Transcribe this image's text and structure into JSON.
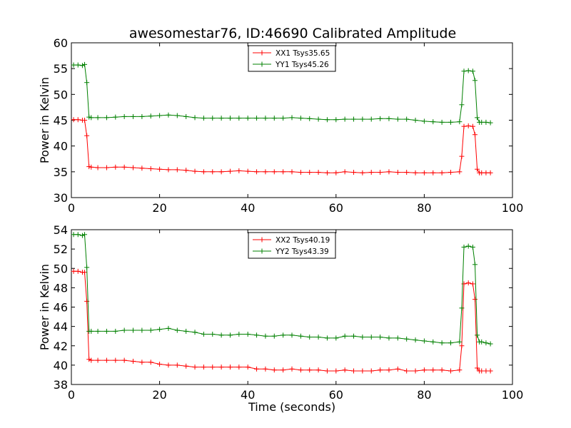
{
  "figure": {
    "title": "awesomestar76, ID:46690 Calibrated Amplitude"
  },
  "chart_data": [
    {
      "type": "line",
      "title": "awesomestar76, ID:46690 Calibrated Amplitude",
      "xlabel": "",
      "ylabel": "Power in Kelvin",
      "xlim": [
        0,
        100
      ],
      "ylim": [
        30,
        60
      ],
      "xticks": [
        "0",
        "20",
        "40",
        "60",
        "80",
        "100"
      ],
      "yticks": [
        "30",
        "35",
        "40",
        "45",
        "50",
        "55",
        "60"
      ],
      "legend_position": "top-center",
      "grid": false,
      "x": [
        0.5,
        1.5,
        2.5,
        3.0,
        3.5,
        4.0,
        4.5,
        6,
        8,
        10,
        12,
        14,
        16,
        18,
        20,
        22,
        24,
        26,
        28,
        30,
        32,
        34,
        36,
        38,
        40,
        42,
        44,
        46,
        48,
        50,
        52,
        54,
        56,
        58,
        60,
        62,
        64,
        66,
        68,
        70,
        72,
        74,
        76,
        78,
        80,
        82,
        84,
        86,
        88,
        88.5,
        89.0,
        90,
        91,
        91.5,
        92,
        92.5,
        93,
        94,
        95
      ],
      "series": [
        {
          "name": "XX1 Tsys35.65",
          "color": "#ff0000",
          "values": [
            45.1,
            45.1,
            45.0,
            45.0,
            42.0,
            36.0,
            35.9,
            35.8,
            35.8,
            35.9,
            35.9,
            35.8,
            35.7,
            35.6,
            35.5,
            35.4,
            35.4,
            35.3,
            35.1,
            35.0,
            35.0,
            35.0,
            35.1,
            35.2,
            35.1,
            35.0,
            35.0,
            35.0,
            35.0,
            35.0,
            34.9,
            34.9,
            34.9,
            34.8,
            34.8,
            35.0,
            34.9,
            34.8,
            34.9,
            34.9,
            35.0,
            34.9,
            34.9,
            34.8,
            34.8,
            34.8,
            34.8,
            34.9,
            35.0,
            38.0,
            43.8,
            43.9,
            43.8,
            42.2,
            35.5,
            34.8,
            34.8,
            34.8,
            34.8
          ]
        },
        {
          "name": "YY1 Tsys45.26",
          "color": "#008000",
          "values": [
            55.7,
            55.7,
            55.6,
            55.8,
            52.3,
            45.6,
            45.5,
            45.5,
            45.5,
            45.6,
            45.7,
            45.7,
            45.7,
            45.8,
            45.9,
            46.0,
            45.9,
            45.7,
            45.5,
            45.4,
            45.4,
            45.4,
            45.4,
            45.4,
            45.4,
            45.4,
            45.4,
            45.4,
            45.4,
            45.5,
            45.4,
            45.3,
            45.2,
            45.1,
            45.1,
            45.2,
            45.2,
            45.2,
            45.2,
            45.3,
            45.3,
            45.2,
            45.2,
            45.0,
            44.8,
            44.7,
            44.6,
            44.6,
            44.7,
            48.0,
            54.5,
            54.6,
            54.5,
            52.7,
            45.5,
            44.6,
            44.6,
            44.6,
            44.5
          ]
        }
      ]
    },
    {
      "type": "line",
      "title": "",
      "xlabel": "Time (seconds)",
      "ylabel": "Power in Kelvin",
      "xlim": [
        0,
        100
      ],
      "ylim": [
        38,
        54
      ],
      "xticks": [
        "0",
        "20",
        "40",
        "60",
        "80",
        "100"
      ],
      "yticks": [
        "38",
        "40",
        "42",
        "44",
        "46",
        "48",
        "50",
        "52",
        "54"
      ],
      "legend_position": "top-center",
      "grid": false,
      "x": [
        0.5,
        1.5,
        2.5,
        3.0,
        3.5,
        4.0,
        4.5,
        6,
        8,
        10,
        12,
        14,
        16,
        18,
        20,
        22,
        24,
        26,
        28,
        30,
        32,
        34,
        36,
        38,
        40,
        42,
        44,
        46,
        48,
        50,
        52,
        54,
        56,
        58,
        60,
        62,
        64,
        66,
        68,
        70,
        72,
        74,
        76,
        78,
        80,
        82,
        84,
        86,
        88,
        88.5,
        89.0,
        90,
        91,
        91.5,
        92,
        92.5,
        93,
        94,
        95
      ],
      "series": [
        {
          "name": "XX2 Tsys40.19",
          "color": "#ff0000",
          "values": [
            49.7,
            49.7,
            49.6,
            49.6,
            46.6,
            40.6,
            40.5,
            40.5,
            40.5,
            40.5,
            40.5,
            40.4,
            40.3,
            40.3,
            40.1,
            40.0,
            40.0,
            39.9,
            39.8,
            39.8,
            39.8,
            39.8,
            39.8,
            39.8,
            39.8,
            39.6,
            39.6,
            39.5,
            39.5,
            39.6,
            39.5,
            39.5,
            39.5,
            39.4,
            39.4,
            39.5,
            39.4,
            39.4,
            39.4,
            39.5,
            39.5,
            39.6,
            39.4,
            39.4,
            39.5,
            39.5,
            39.5,
            39.4,
            39.5,
            42.0,
            48.4,
            48.5,
            48.4,
            46.8,
            39.7,
            39.4,
            39.4,
            39.4,
            39.4
          ]
        },
        {
          "name": "YY2 Tsys43.39",
          "color": "#008000",
          "values": [
            53.5,
            53.5,
            53.4,
            53.5,
            50.1,
            43.5,
            43.5,
            43.5,
            43.5,
            43.5,
            43.6,
            43.6,
            43.6,
            43.6,
            43.7,
            43.8,
            43.6,
            43.5,
            43.4,
            43.2,
            43.2,
            43.1,
            43.1,
            43.2,
            43.2,
            43.1,
            43.0,
            43.0,
            43.1,
            43.1,
            43.0,
            42.9,
            42.9,
            42.8,
            42.8,
            43.0,
            43.0,
            42.9,
            42.9,
            42.9,
            42.8,
            42.8,
            42.7,
            42.6,
            42.5,
            42.4,
            42.3,
            42.3,
            42.4,
            45.9,
            52.2,
            52.3,
            52.2,
            50.4,
            43.1,
            42.4,
            42.4,
            42.3,
            42.2
          ]
        }
      ]
    }
  ]
}
